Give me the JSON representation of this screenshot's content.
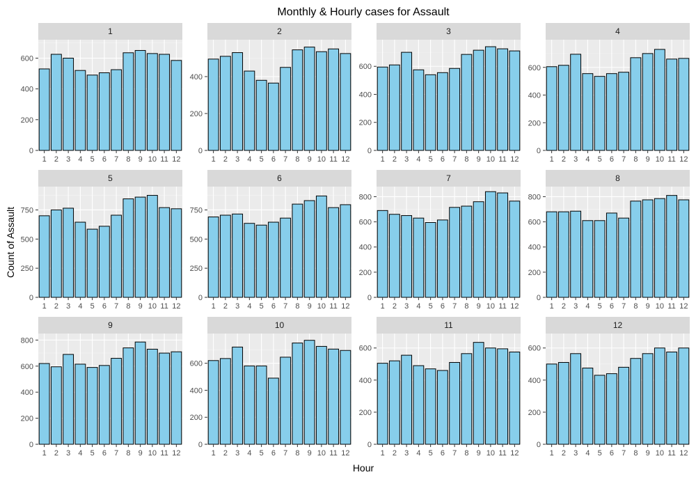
{
  "chart_data": {
    "type": "bar",
    "title": "Monthly & Hourly cases for Assault",
    "xlabel": "Hour",
    "ylabel": "Count of Assault",
    "categories": [
      "1",
      "2",
      "3",
      "4",
      "5",
      "6",
      "7",
      "8",
      "9",
      "10",
      "11",
      "12"
    ],
    "colors": {
      "bar_fill": "#87ceeb",
      "bar_outline": "#000000",
      "panel_background": "#ebebeb",
      "strip_background": "#d9d9d9"
    },
    "grid": true,
    "facets": [
      {
        "name": "1",
        "ylim": [
          0,
          720
        ],
        "ticks": [
          0,
          200,
          400,
          600
        ],
        "values": [
          530,
          625,
          600,
          520,
          490,
          505,
          525,
          635,
          650,
          630,
          625,
          585
        ]
      },
      {
        "name": "2",
        "ylim": [
          0,
          600
        ],
        "ticks": [
          0,
          200,
          400
        ],
        "values": [
          495,
          510,
          530,
          430,
          380,
          365,
          450,
          545,
          560,
          535,
          550,
          525
        ]
      },
      {
        "name": "3",
        "ylim": [
          0,
          790
        ],
        "ticks": [
          0,
          200,
          400,
          600
        ],
        "values": [
          595,
          610,
          700,
          575,
          540,
          555,
          585,
          685,
          715,
          740,
          725,
          710
        ]
      },
      {
        "name": "4",
        "ylim": [
          0,
          800
        ],
        "ticks": [
          0,
          200,
          400,
          600
        ],
        "values": [
          605,
          615,
          695,
          555,
          535,
          555,
          565,
          670,
          700,
          730,
          660,
          665
        ]
      },
      {
        "name": "5",
        "ylim": [
          0,
          950
        ],
        "ticks": [
          0,
          250,
          500,
          750
        ],
        "values": [
          700,
          750,
          765,
          645,
          585,
          610,
          705,
          845,
          860,
          875,
          770,
          760
        ]
      },
      {
        "name": "6",
        "ylim": [
          0,
          950
        ],
        "ticks": [
          0,
          250,
          500,
          750
        ],
        "values": [
          690,
          705,
          715,
          635,
          620,
          645,
          680,
          800,
          830,
          870,
          770,
          795
        ]
      },
      {
        "name": "7",
        "ylim": [
          0,
          880
        ],
        "ticks": [
          0,
          200,
          400,
          600,
          800
        ],
        "values": [
          690,
          660,
          650,
          630,
          595,
          615,
          715,
          725,
          760,
          840,
          830,
          765
        ]
      },
      {
        "name": "8",
        "ylim": [
          0,
          880
        ],
        "ticks": [
          0,
          200,
          400,
          600,
          800
        ],
        "values": [
          680,
          680,
          685,
          610,
          610,
          670,
          630,
          765,
          775,
          785,
          810,
          775
        ]
      },
      {
        "name": "9",
        "ylim": [
          0,
          850
        ],
        "ticks": [
          0,
          200,
          400,
          600,
          800
        ],
        "values": [
          620,
          595,
          690,
          615,
          590,
          605,
          660,
          740,
          785,
          730,
          700,
          710
        ]
      },
      {
        "name": "10",
        "ylim": [
          0,
          820
        ],
        "ticks": [
          0,
          200,
          400,
          600
        ],
        "values": [
          620,
          635,
          720,
          580,
          580,
          490,
          645,
          750,
          770,
          725,
          705,
          695
        ]
      },
      {
        "name": "11",
        "ylim": [
          0,
          690
        ],
        "ticks": [
          0,
          200,
          400,
          600
        ],
        "values": [
          505,
          520,
          555,
          490,
          470,
          460,
          510,
          565,
          635,
          600,
          595,
          575
        ]
      },
      {
        "name": "12",
        "ylim": [
          0,
          690
        ],
        "ticks": [
          0,
          200,
          400,
          600
        ],
        "values": [
          500,
          510,
          565,
          475,
          430,
          440,
          480,
          535,
          565,
          600,
          575,
          600
        ]
      }
    ]
  }
}
